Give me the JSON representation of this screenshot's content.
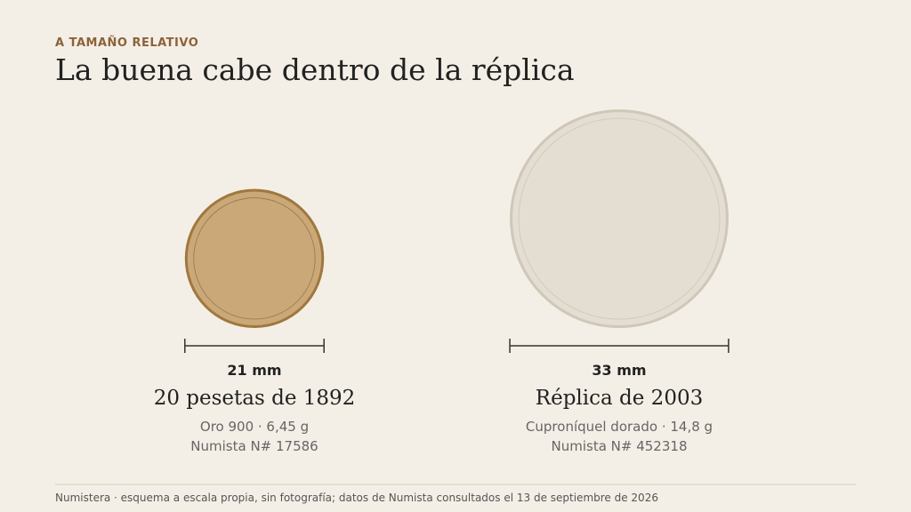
{
  "header": {
    "eyebrow": "A TAMAÑO RELATIVO",
    "title": "La buena cabe dentro de la réplica"
  },
  "coins": [
    {
      "diameter_mm": 21,
      "diameter_label": "21 mm",
      "name": "20 pesetas de 1892",
      "detail": "Oro 900 · 6,45 g",
      "numista": "Numista N# 17586"
    },
    {
      "diameter_mm": 33,
      "diameter_label": "33 mm",
      "name": "Réplica de 2003",
      "detail": "Cuproníquel dorado · 14,8 g",
      "numista": "Numista N# 452318"
    }
  ],
  "footer": "Numistera · esquema a escala propia, sin fotografía; datos de Numista consultados el 13 de septiembre de 2026"
}
